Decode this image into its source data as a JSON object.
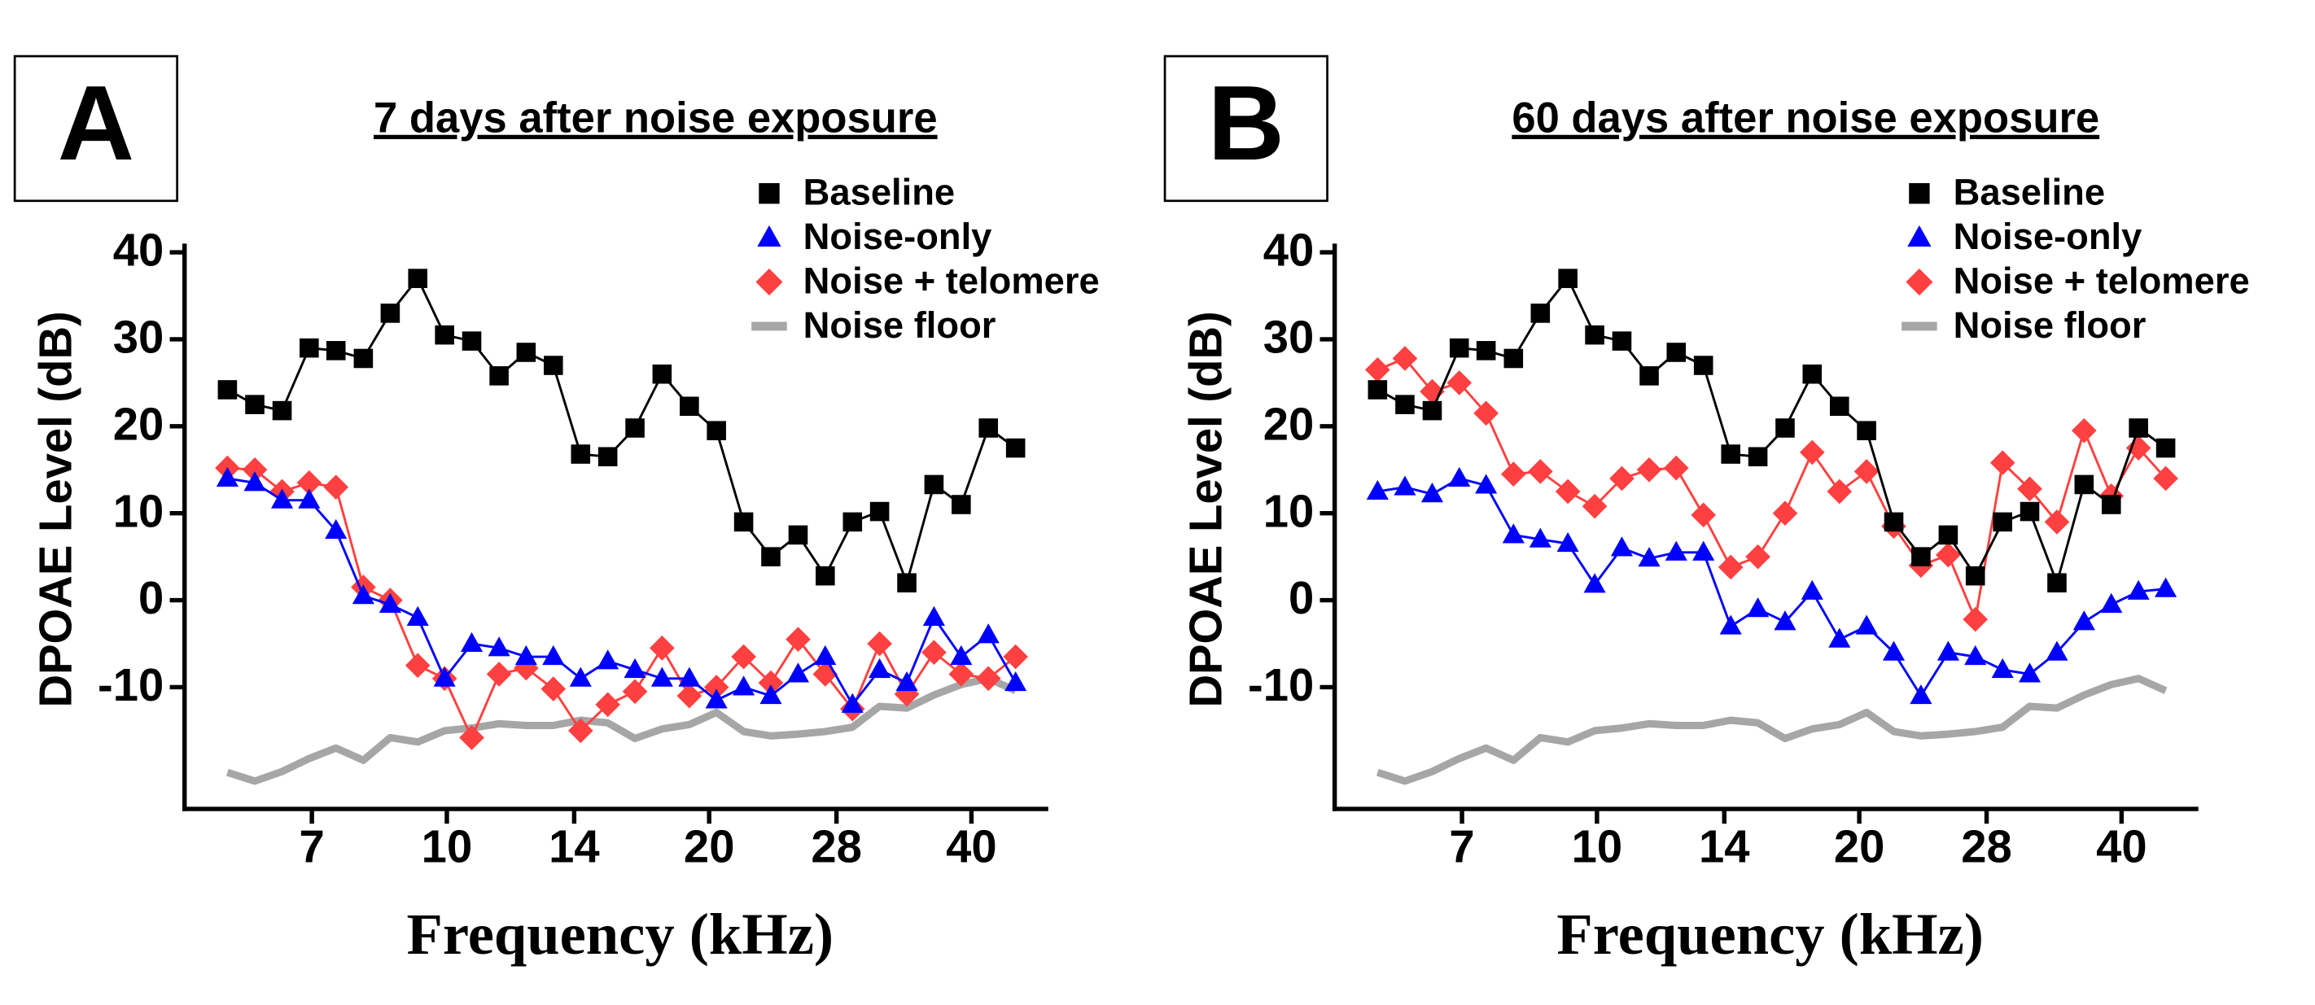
{
  "chart_data": [
    {
      "type": "line",
      "panel_label": "A",
      "title": "7 days after noise exposure",
      "xlabel": "Frequency (kHz)",
      "ylabel": "DPOAE Level (dB)",
      "log_x": true,
      "x": [
        5.6,
        6.02,
        6.47,
        6.95,
        7.46,
        8.02,
        8.61,
        9.26,
        9.94,
        10.68,
        11.48,
        12.33,
        13.25,
        14.24,
        15.3,
        16.44,
        17.66,
        18.98,
        20.39,
        21.91,
        23.54,
        25.3,
        27.18,
        29.21,
        31.38,
        33.72,
        36.23,
        38.93,
        41.83,
        44.95
      ],
      "xlim": [
        5,
        49
      ],
      "xticks": [
        7,
        10,
        14,
        20,
        28,
        40
      ],
      "ylim": [
        -24,
        41
      ],
      "yticks": [
        40,
        30,
        20,
        10,
        0,
        -10
      ],
      "series": [
        {
          "name": "Baseline",
          "color": "#000000",
          "marker": "square",
          "values": [
            24.2,
            22.5,
            21.8,
            29,
            28.7,
            27.8,
            33,
            37,
            30.5,
            29.8,
            25.8,
            28.5,
            27,
            16.8,
            16.5,
            19.8,
            26,
            22.3,
            19.5,
            9,
            5,
            7.5,
            2.8,
            9,
            10.2,
            2,
            13.3,
            11,
            19.8,
            17.5
          ]
        },
        {
          "name": "Noise-only",
          "color": "#0000ff",
          "marker": "triangle",
          "values": [
            14,
            13.5,
            11.5,
            11.5,
            8,
            0.5,
            -0.5,
            -2,
            -9,
            -5,
            -5.5,
            -6.5,
            -6.5,
            -9,
            -7,
            -8,
            -9,
            -9,
            -11.5,
            -10,
            -11,
            -8.5,
            -6.5,
            -12,
            -8,
            -9.5,
            -2,
            -6.5,
            -4,
            -9.5
          ]
        },
        {
          "name": "Noise + telomere",
          "color": "#ff4040",
          "marker": "diamond",
          "values": [
            15.2,
            15,
            12.5,
            13.5,
            13,
            1.5,
            0,
            -7.5,
            -9,
            -15.8,
            -8.5,
            -7.8,
            -10.2,
            -15,
            -12,
            -10.5,
            -5.5,
            -11,
            -10,
            -6.5,
            -9.5,
            -4.5,
            -8.5,
            -12.5,
            -5,
            -10.8,
            -6,
            -8.5,
            -9,
            -6.5
          ]
        },
        {
          "name": "Noise floor",
          "color": "#a6a6a6",
          "marker": "none",
          "values": [
            -19.8,
            -20.8,
            -19.7,
            -18.2,
            -17,
            -18.4,
            -15.8,
            -16.3,
            -15,
            -14.7,
            -14.2,
            -14.4,
            -14.4,
            -13.8,
            -14.1,
            -15.9,
            -14.8,
            -14.3,
            -12.9,
            -15.1,
            -15.6,
            -15.4,
            -15.1,
            -14.6,
            -12.2,
            -12.4,
            -10.9,
            -9.7,
            -9,
            -10.4
          ]
        }
      ]
    },
    {
      "type": "line",
      "panel_label": "B",
      "title": "60 days after noise exposure",
      "xlabel": "Frequency (kHz)",
      "ylabel": "DPOAE Level (dB)",
      "log_x": true,
      "x": [
        5.6,
        6.02,
        6.47,
        6.95,
        7.46,
        8.02,
        8.61,
        9.26,
        9.94,
        10.68,
        11.48,
        12.33,
        13.25,
        14.24,
        15.3,
        16.44,
        17.66,
        18.98,
        20.39,
        21.91,
        23.54,
        25.3,
        27.18,
        29.21,
        31.38,
        33.72,
        36.23,
        38.93,
        41.83,
        44.95
      ],
      "xlim": [
        5,
        49
      ],
      "xticks": [
        7,
        10,
        14,
        20,
        28,
        40
      ],
      "ylim": [
        -24,
        41
      ],
      "yticks": [
        40,
        30,
        20,
        10,
        0,
        -10
      ],
      "series": [
        {
          "name": "Baseline",
          "color": "#000000",
          "marker": "square",
          "values": [
            24.2,
            22.5,
            21.8,
            29,
            28.7,
            27.8,
            33,
            37,
            30.5,
            29.8,
            25.8,
            28.5,
            27,
            16.8,
            16.5,
            19.8,
            26,
            22.3,
            19.5,
            9,
            5,
            7.5,
            2.8,
            9,
            10.2,
            2,
            13.3,
            11,
            19.8,
            17.5
          ]
        },
        {
          "name": "Noise-only",
          "color": "#0000ff",
          "marker": "triangle",
          "values": [
            12.5,
            13,
            12.2,
            14,
            13.2,
            7.5,
            7,
            6.5,
            1.8,
            6,
            4.8,
            5.5,
            5.5,
            -3,
            -1,
            -2.5,
            1,
            -4.5,
            -3,
            -6,
            -11,
            -6,
            -6.5,
            -8,
            -8.5,
            -6,
            -2.5,
            -0.5,
            1,
            1.3
          ]
        },
        {
          "name": "Noise + telomere",
          "color": "#ff4040",
          "marker": "diamond",
          "values": [
            26.5,
            27.8,
            24,
            25,
            21.5,
            14.5,
            14.8,
            12.5,
            10.8,
            14,
            15,
            15.2,
            9.8,
            3.8,
            5,
            10,
            17,
            12.5,
            14.8,
            8.5,
            4,
            5.2,
            -2.2,
            15.8,
            12.8,
            9,
            19.5,
            12,
            17.5,
            14
          ]
        },
        {
          "name": "Noise floor",
          "color": "#a6a6a6",
          "marker": "none",
          "values": [
            -19.8,
            -20.8,
            -19.7,
            -18.2,
            -17,
            -18.4,
            -15.8,
            -16.3,
            -15,
            -14.7,
            -14.2,
            -14.4,
            -14.4,
            -13.8,
            -14.1,
            -15.9,
            -14.8,
            -14.3,
            -12.9,
            -15.1,
            -15.6,
            -15.4,
            -15.1,
            -14.6,
            -12.2,
            -12.4,
            -10.9,
            -9.7,
            -9,
            -10.4
          ]
        }
      ]
    }
  ]
}
